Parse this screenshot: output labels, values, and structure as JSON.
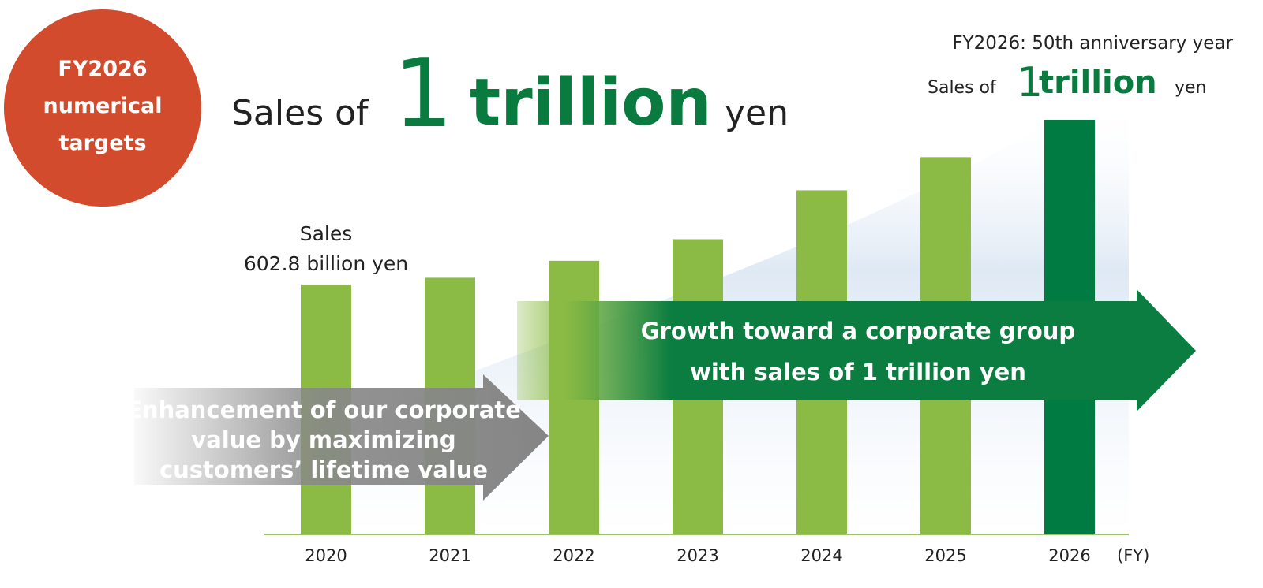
{
  "chart_data": {
    "type": "bar",
    "badge": [
      "FY2026",
      "numerical",
      "targets"
    ],
    "headline": {
      "prefix": "Sales of",
      "number": "1",
      "word": "trillion",
      "suffix": "yen"
    },
    "corner_note": {
      "title": "FY2026: 50th anniversary year",
      "prefix": "Sales of",
      "number": "1",
      "word": "trillion",
      "suffix": "yen"
    },
    "categories": [
      "2020",
      "2021",
      "2022",
      "2023",
      "2024",
      "2025",
      "2026"
    ],
    "values": [
      602.8,
      619,
      660,
      712,
      830,
      910,
      1000
    ],
    "value_label_title": "Sales",
    "value_labels": [
      "602.8 billion yen",
      null,
      null,
      null,
      null,
      null,
      null
    ],
    "colors": [
      "#8cbb45",
      "#8cbb45",
      "#8cbb45",
      "#8cbb45",
      "#8cbb45",
      "#8cbb45",
      "#007c42"
    ],
    "x_unit": "(FY)",
    "arrows": [
      {
        "lines": [
          "Enhancement of our corporate",
          "value by maximizing",
          "customers’ lifetime value"
        ],
        "color": "#858585"
      },
      {
        "lines": [
          "Growth toward a corporate group",
          "with sales of 1 trillion yen"
        ],
        "color": "#0b7d40"
      }
    ]
  }
}
